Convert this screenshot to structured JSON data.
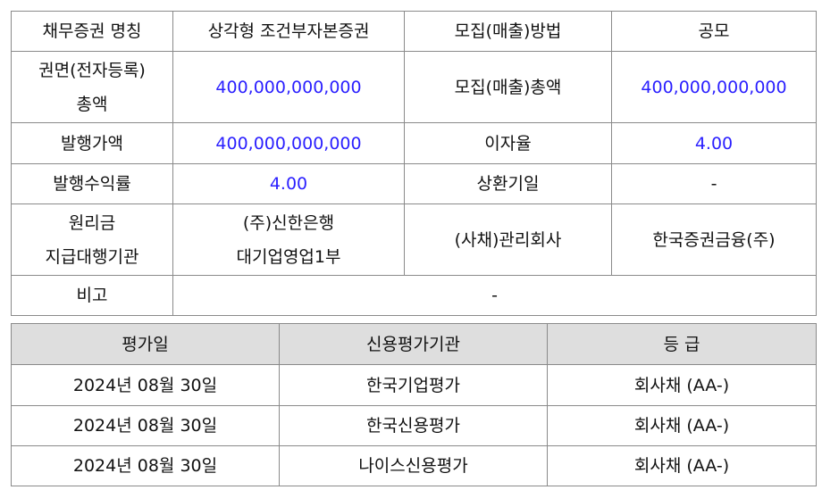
{
  "bond_info": {
    "name_label": "채무증권 명칭",
    "name_value": "상각형 조건부자본증권",
    "method_label": "모집(매출)방법",
    "method_value": "공모",
    "face_label_1": "권면(전자등록)",
    "face_label_2": "총액",
    "face_value": "400,000,000,000",
    "total_label": "모집(매출)총액",
    "total_value": "400,000,000,000",
    "issue_price_label": "발행가액",
    "issue_price_value": "400,000,000,000",
    "interest_label": "이자율",
    "interest_value": "4.00",
    "yield_label": "발행수익률",
    "yield_value": "4.00",
    "maturity_label": "상환기일",
    "maturity_value": "-",
    "agent_label_1": "원리금",
    "agent_label_2": "지급대행기관",
    "agent_value_1": "(주)신한은행",
    "agent_value_2": "대기업영업1부",
    "manager_label": "(사채)관리회사",
    "manager_value": "한국증권금융(주)",
    "remarks_label": "비고",
    "remarks_value": "-"
  },
  "ratings": {
    "headers": [
      "평가일",
      "신용평가기관",
      "등 급"
    ],
    "rows": [
      [
        "2024년 08월 30일",
        "한국기업평가",
        "회사채 (AA-)"
      ],
      [
        "2024년 08월 30일",
        "한국신용평가",
        "회사채 (AA-)"
      ],
      [
        "2024년 08월 30일",
        "나이스신용평가",
        "회사채 (AA-)"
      ]
    ]
  },
  "colors": {
    "value_text": "#2a1fff",
    "header_bg": "#dedede"
  }
}
